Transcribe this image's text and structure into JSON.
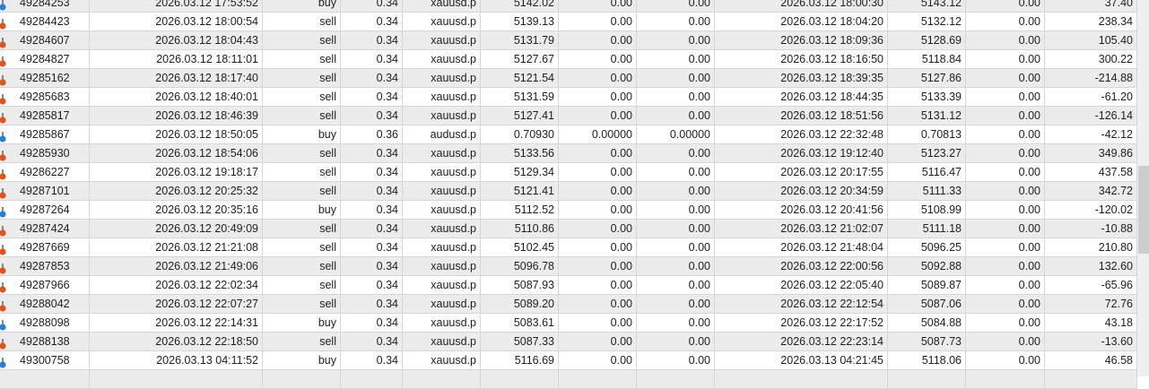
{
  "colors": {
    "buy_icon": "#2a7fd4",
    "sell_icon": "#e0521e",
    "alt_row": "#ececec"
  },
  "rows": [
    {
      "ticket": "49284253",
      "open_time": "2026.03.12 17:53:52",
      "type": "buy",
      "volume": "0.34",
      "symbol": "xauusd.p",
      "open_price": "5142.02",
      "sl": "0.00",
      "tp": "0.00",
      "close_time": "2026.03.12 18:00:30",
      "close_price": "5143.12",
      "swap": "0.00",
      "profit": "37.40"
    },
    {
      "ticket": "49284423",
      "open_time": "2026.03.12 18:00:54",
      "type": "sell",
      "volume": "0.34",
      "symbol": "xauusd.p",
      "open_price": "5139.13",
      "sl": "0.00",
      "tp": "0.00",
      "close_time": "2026.03.12 18:04:20",
      "close_price": "5132.12",
      "swap": "0.00",
      "profit": "238.34"
    },
    {
      "ticket": "49284607",
      "open_time": "2026.03.12 18:04:43",
      "type": "sell",
      "volume": "0.34",
      "symbol": "xauusd.p",
      "open_price": "5131.79",
      "sl": "0.00",
      "tp": "0.00",
      "close_time": "2026.03.12 18:09:36",
      "close_price": "5128.69",
      "swap": "0.00",
      "profit": "105.40"
    },
    {
      "ticket": "49284827",
      "open_time": "2026.03.12 18:11:01",
      "type": "sell",
      "volume": "0.34",
      "symbol": "xauusd.p",
      "open_price": "5127.67",
      "sl": "0.00",
      "tp": "0.00",
      "close_time": "2026.03.12 18:16:50",
      "close_price": "5118.84",
      "swap": "0.00",
      "profit": "300.22"
    },
    {
      "ticket": "49285162",
      "open_time": "2026.03.12 18:17:40",
      "type": "sell",
      "volume": "0.34",
      "symbol": "xauusd.p",
      "open_price": "5121.54",
      "sl": "0.00",
      "tp": "0.00",
      "close_time": "2026.03.12 18:39:35",
      "close_price": "5127.86",
      "swap": "0.00",
      "profit": "-214.88"
    },
    {
      "ticket": "49285683",
      "open_time": "2026.03.12 18:40:01",
      "type": "sell",
      "volume": "0.34",
      "symbol": "xauusd.p",
      "open_price": "5131.59",
      "sl": "0.00",
      "tp": "0.00",
      "close_time": "2026.03.12 18:44:35",
      "close_price": "5133.39",
      "swap": "0.00",
      "profit": "-61.20"
    },
    {
      "ticket": "49285817",
      "open_time": "2026.03.12 18:46:39",
      "type": "sell",
      "volume": "0.34",
      "symbol": "xauusd.p",
      "open_price": "5127.41",
      "sl": "0.00",
      "tp": "0.00",
      "close_time": "2026.03.12 18:51:56",
      "close_price": "5131.12",
      "swap": "0.00",
      "profit": "-126.14"
    },
    {
      "ticket": "49285867",
      "open_time": "2026.03.12 18:50:05",
      "type": "buy",
      "volume": "0.36",
      "symbol": "audusd.p",
      "open_price": "0.70930",
      "sl": "0.00000",
      "tp": "0.00000",
      "close_time": "2026.03.12 22:32:48",
      "close_price": "0.70813",
      "swap": "0.00",
      "profit": "-42.12"
    },
    {
      "ticket": "49285930",
      "open_time": "2026.03.12 18:54:06",
      "type": "sell",
      "volume": "0.34",
      "symbol": "xauusd.p",
      "open_price": "5133.56",
      "sl": "0.00",
      "tp": "0.00",
      "close_time": "2026.03.12 19:12:40",
      "close_price": "5123.27",
      "swap": "0.00",
      "profit": "349.86"
    },
    {
      "ticket": "49286227",
      "open_time": "2026.03.12 19:18:17",
      "type": "sell",
      "volume": "0.34",
      "symbol": "xauusd.p",
      "open_price": "5129.34",
      "sl": "0.00",
      "tp": "0.00",
      "close_time": "2026.03.12 20:17:55",
      "close_price": "5116.47",
      "swap": "0.00",
      "profit": "437.58"
    },
    {
      "ticket": "49287101",
      "open_time": "2026.03.12 20:25:32",
      "type": "sell",
      "volume": "0.34",
      "symbol": "xauusd.p",
      "open_price": "5121.41",
      "sl": "0.00",
      "tp": "0.00",
      "close_time": "2026.03.12 20:34:59",
      "close_price": "5111.33",
      "swap": "0.00",
      "profit": "342.72"
    },
    {
      "ticket": "49287264",
      "open_time": "2026.03.12 20:35:16",
      "type": "buy",
      "volume": "0.34",
      "symbol": "xauusd.p",
      "open_price": "5112.52",
      "sl": "0.00",
      "tp": "0.00",
      "close_time": "2026.03.12 20:41:56",
      "close_price": "5108.99",
      "swap": "0.00",
      "profit": "-120.02"
    },
    {
      "ticket": "49287424",
      "open_time": "2026.03.12 20:49:09",
      "type": "sell",
      "volume": "0.34",
      "symbol": "xauusd.p",
      "open_price": "5110.86",
      "sl": "0.00",
      "tp": "0.00",
      "close_time": "2026.03.12 21:02:07",
      "close_price": "5111.18",
      "swap": "0.00",
      "profit": "-10.88"
    },
    {
      "ticket": "49287669",
      "open_time": "2026.03.12 21:21:08",
      "type": "sell",
      "volume": "0.34",
      "symbol": "xauusd.p",
      "open_price": "5102.45",
      "sl": "0.00",
      "tp": "0.00",
      "close_time": "2026.03.12 21:48:04",
      "close_price": "5096.25",
      "swap": "0.00",
      "profit": "210.80"
    },
    {
      "ticket": "49287853",
      "open_time": "2026.03.12 21:49:06",
      "type": "sell",
      "volume": "0.34",
      "symbol": "xauusd.p",
      "open_price": "5096.78",
      "sl": "0.00",
      "tp": "0.00",
      "close_time": "2026.03.12 22:00:56",
      "close_price": "5092.88",
      "swap": "0.00",
      "profit": "132.60"
    },
    {
      "ticket": "49287966",
      "open_time": "2026.03.12 22:02:34",
      "type": "sell",
      "volume": "0.34",
      "symbol": "xauusd.p",
      "open_price": "5087.93",
      "sl": "0.00",
      "tp": "0.00",
      "close_time": "2026.03.12 22:05:40",
      "close_price": "5089.87",
      "swap": "0.00",
      "profit": "-65.96"
    },
    {
      "ticket": "49288042",
      "open_time": "2026.03.12 22:07:27",
      "type": "sell",
      "volume": "0.34",
      "symbol": "xauusd.p",
      "open_price": "5089.20",
      "sl": "0.00",
      "tp": "0.00",
      "close_time": "2026.03.12 22:12:54",
      "close_price": "5087.06",
      "swap": "0.00",
      "profit": "72.76"
    },
    {
      "ticket": "49288098",
      "open_time": "2026.03.12 22:14:31",
      "type": "buy",
      "volume": "0.34",
      "symbol": "xauusd.p",
      "open_price": "5083.61",
      "sl": "0.00",
      "tp": "0.00",
      "close_time": "2026.03.12 22:17:52",
      "close_price": "5084.88",
      "swap": "0.00",
      "profit": "43.18"
    },
    {
      "ticket": "49288138",
      "open_time": "2026.03.12 22:18:50",
      "type": "sell",
      "volume": "0.34",
      "symbol": "xauusd.p",
      "open_price": "5087.33",
      "sl": "0.00",
      "tp": "0.00",
      "close_time": "2026.03.12 22:23:14",
      "close_price": "5087.73",
      "swap": "0.00",
      "profit": "-13.60"
    },
    {
      "ticket": "49300758",
      "open_time": "2026.03.13 04:11:52",
      "type": "buy",
      "volume": "0.34",
      "symbol": "xauusd.p",
      "open_price": "5116.69",
      "sl": "0.00",
      "tp": "0.00",
      "close_time": "2026.03.13 04:21:45",
      "close_price": "5118.06",
      "swap": "0.00",
      "profit": "46.58"
    }
  ]
}
